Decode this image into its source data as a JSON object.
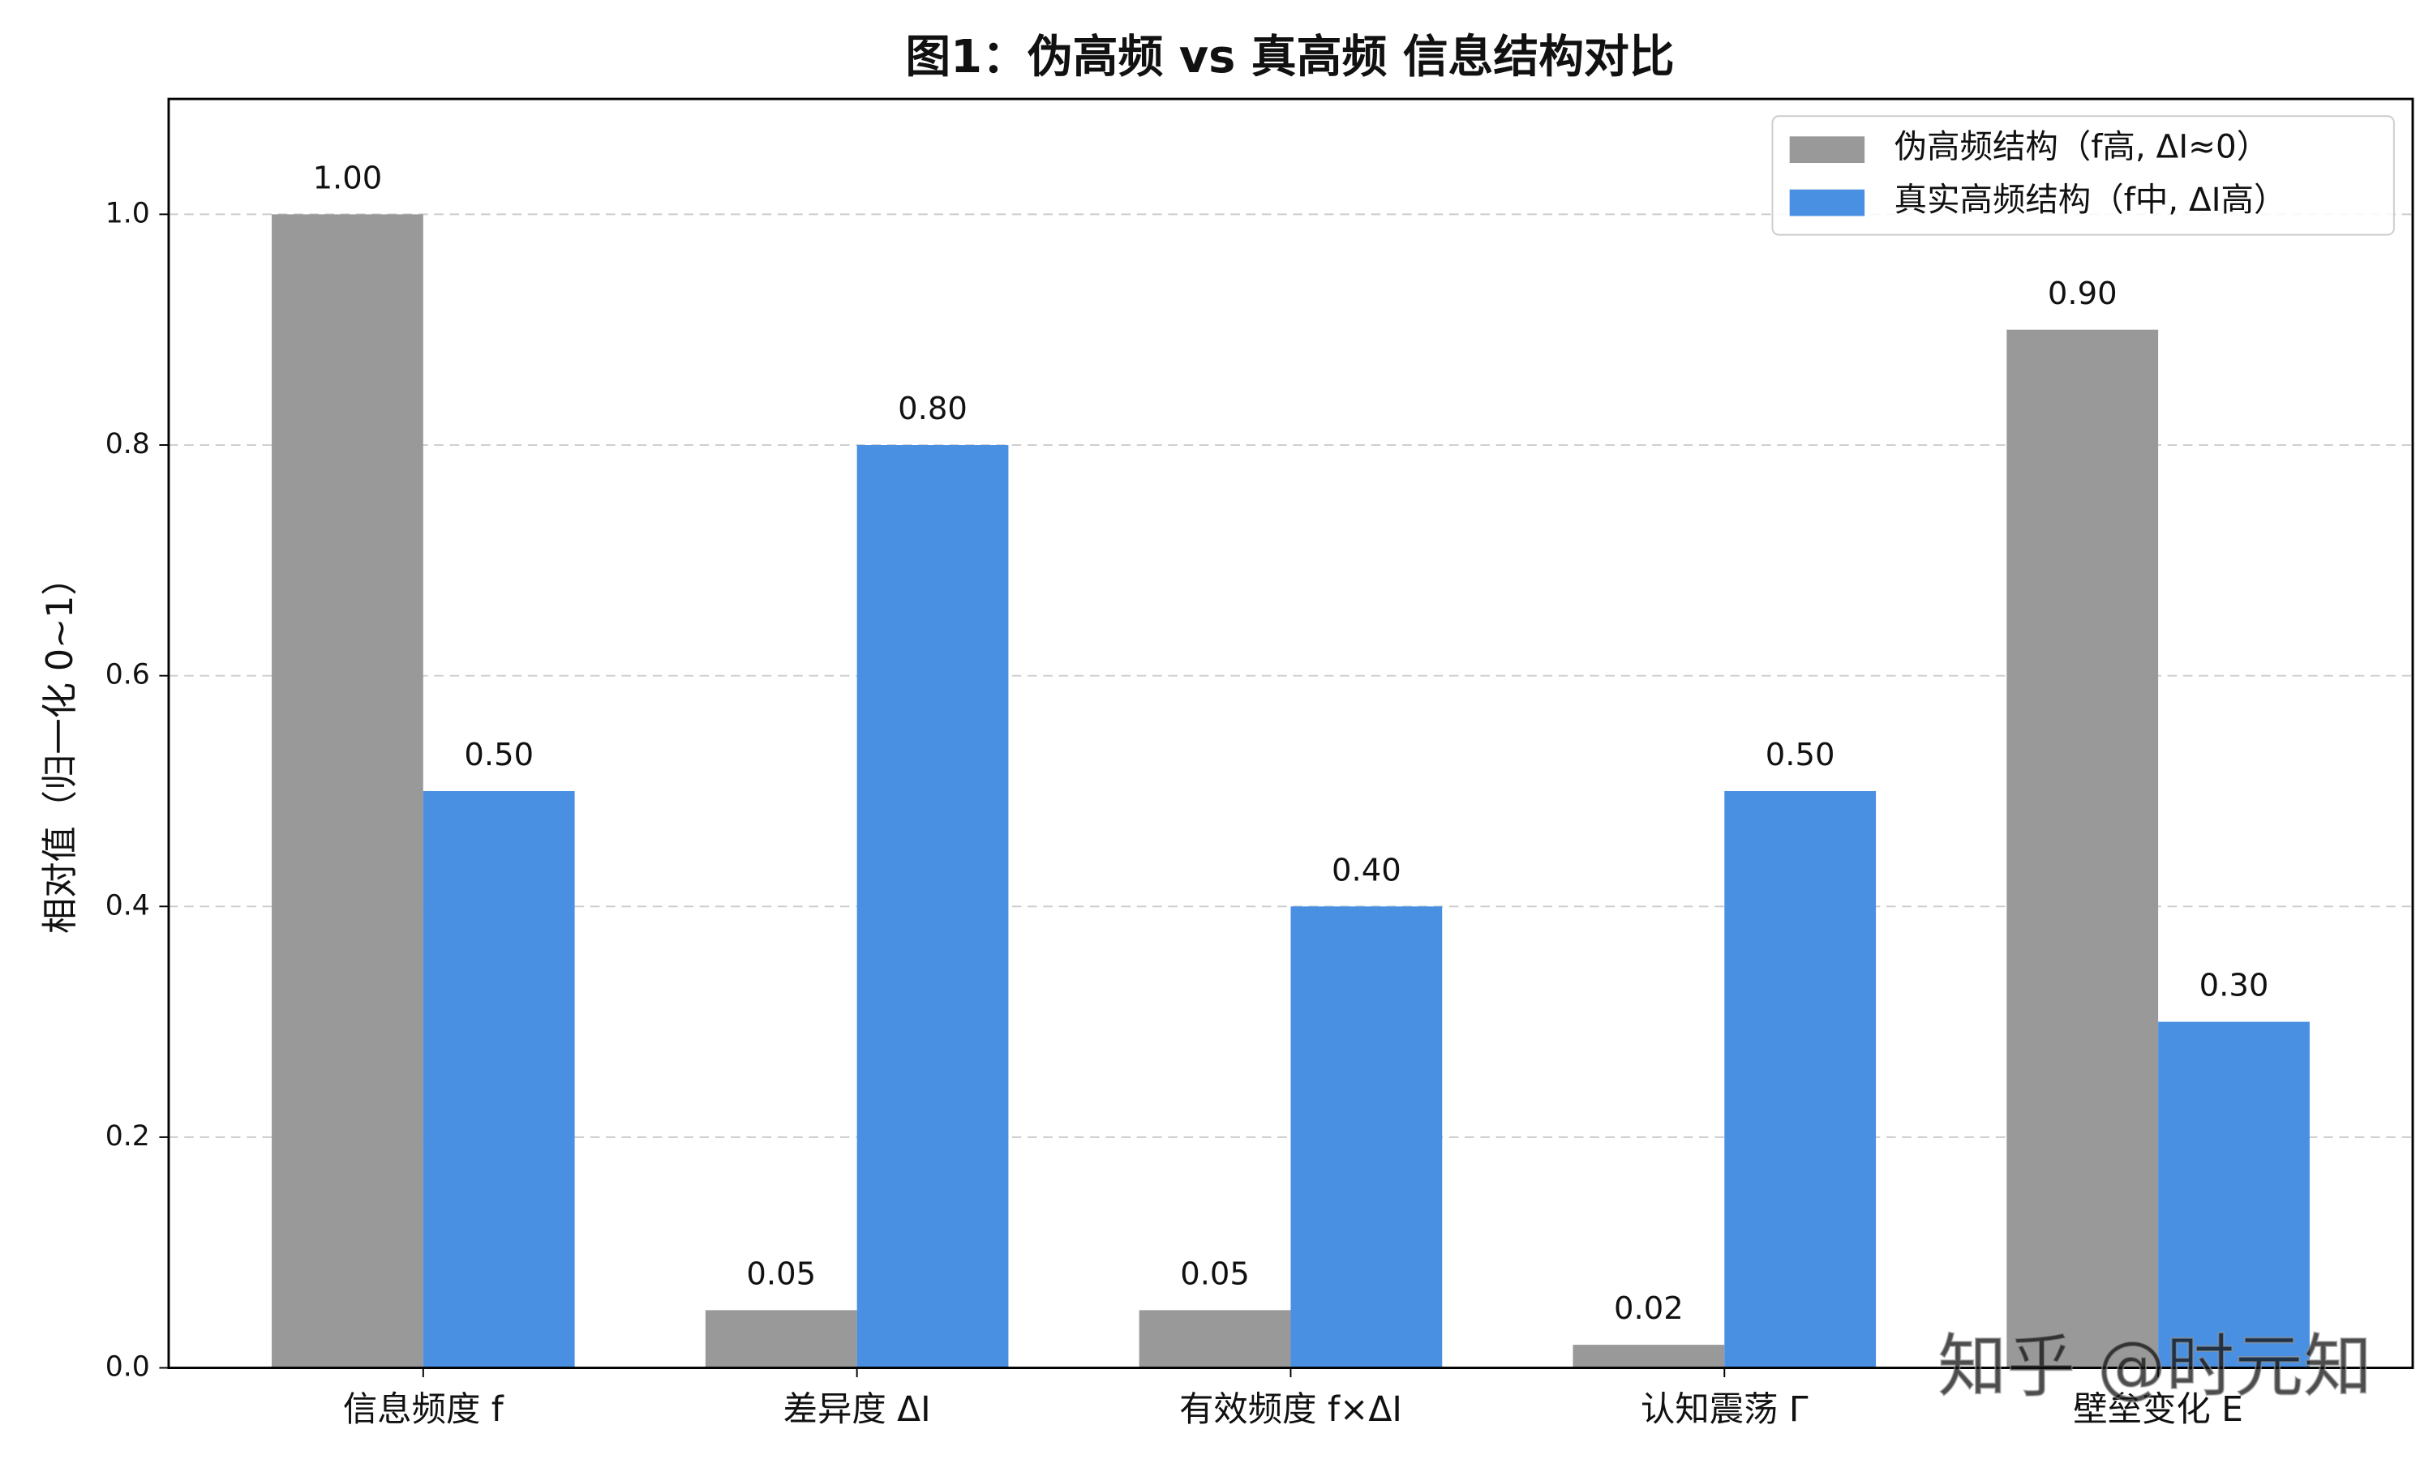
{
  "chart_data": {
    "type": "bar",
    "title": "图1：伪高频 vs 真高频 信息结构对比",
    "y_label": "相对值（归一化 0~1）",
    "categories": [
      "信息频度 f",
      "差异度 ΔI",
      "有效频度 f×ΔI",
      "认知震荡 Γ",
      "壁垒变化 E"
    ],
    "series": [
      {
        "name": "伪高频结构（f高, ΔI≈0）",
        "color": "#999999",
        "values": [
          1.0,
          0.05,
          0.05,
          0.02,
          0.9
        ],
        "value_labels": [
          "1.00",
          "0.05",
          "0.05",
          "0.02",
          "0.90"
        ]
      },
      {
        "name": "真实高频结构（f中, ΔI高）",
        "color": "#4a90e2",
        "values": [
          0.5,
          0.8,
          0.4,
          0.5,
          0.3
        ],
        "value_labels": [
          "0.50",
          "0.80",
          "0.40",
          "0.50",
          "0.30"
        ]
      }
    ],
    "ylim": [
      0,
      1.1
    ],
    "yticks": [
      {
        "value": 0,
        "label": "0.0"
      },
      0.2,
      0.4,
      0.6,
      0.8,
      {
        "value": 1,
        "label": "1.0"
      }
    ],
    "grid": true,
    "legend": "upper right",
    "watermark": "知乎 @时元知"
  }
}
